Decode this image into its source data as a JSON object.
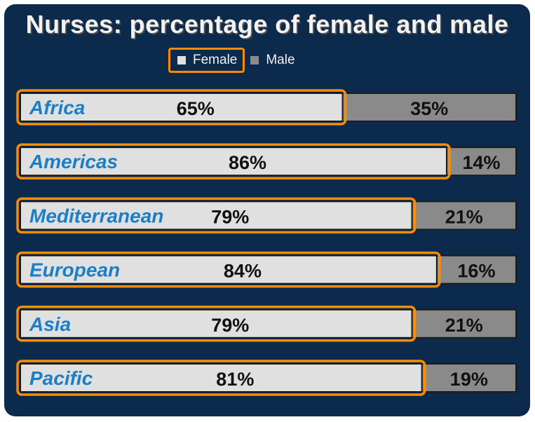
{
  "chart_data": {
    "type": "bar",
    "title": "Nurses: percentage of female and male",
    "categories": [
      "Africa",
      "Americas",
      "Mediterranean",
      "European",
      "Asia",
      "Pacific"
    ],
    "series": [
      {
        "name": "Female",
        "values": [
          65,
          86,
          79,
          84,
          79,
          81
        ],
        "color": "#e0e0e0"
      },
      {
        "name": "Male",
        "values": [
          35,
          14,
          21,
          16,
          21,
          19
        ],
        "color": "#8a8a8a"
      }
    ],
    "value_labels": {
      "Female": [
        "65%",
        "86%",
        "79%",
        "84%",
        "79%",
        "81%"
      ],
      "Male": [
        "35%",
        "14%",
        "21%",
        "16%",
        "21%",
        "19%"
      ]
    },
    "orientation": "horizontal",
    "stacked": true,
    "xlim": [
      0,
      100
    ],
    "legend_position": "top",
    "highlight_color": "#ff8c00",
    "background_color": "#0c2a4b"
  },
  "legend": {
    "items": [
      {
        "label": "Female",
        "color": "#e0e0e0",
        "selected": true
      },
      {
        "label": "Male",
        "color": "#8a8a8a",
        "selected": false
      }
    ]
  }
}
